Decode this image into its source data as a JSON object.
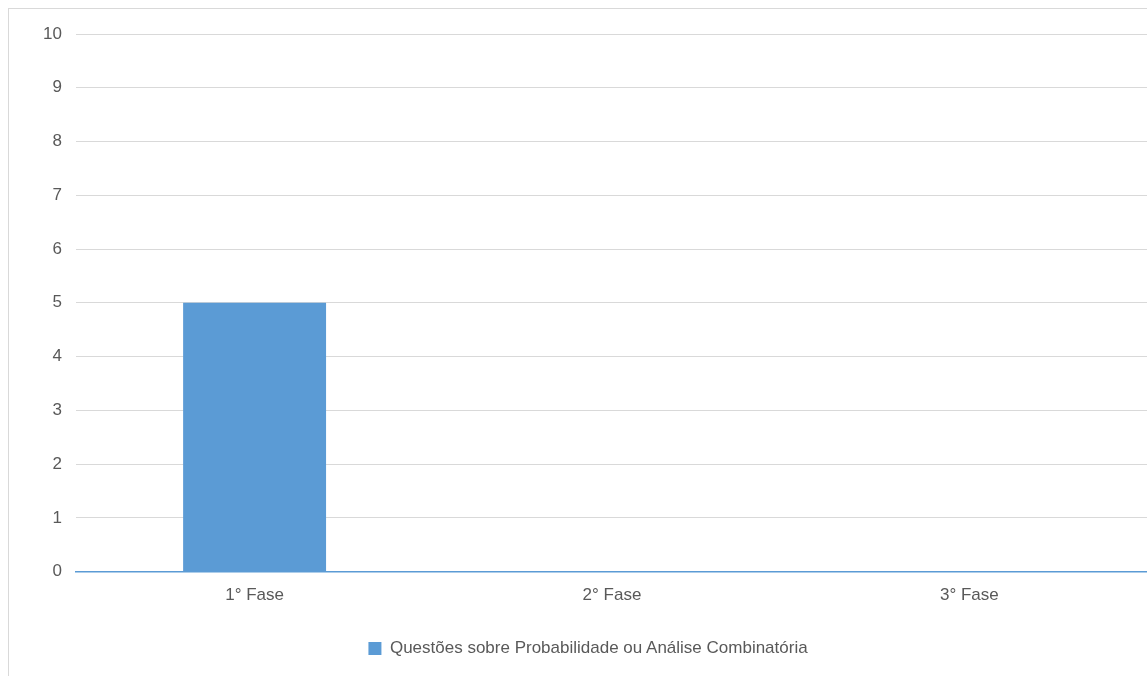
{
  "chart_data": {
    "type": "bar",
    "categories": [
      "1° Fase",
      "2° Fase",
      "3° Fase"
    ],
    "series": [
      {
        "name": "Questões sobre Probabilidade ou Análise Combinatória",
        "color": "#5b9bd5",
        "values": [
          5,
          0,
          0
        ]
      }
    ],
    "ylim": [
      0,
      10
    ],
    "yticks": [
      0,
      1,
      2,
      3,
      4,
      5,
      6,
      7,
      8,
      9,
      10
    ],
    "grid": "y",
    "legend": "bottom"
  }
}
